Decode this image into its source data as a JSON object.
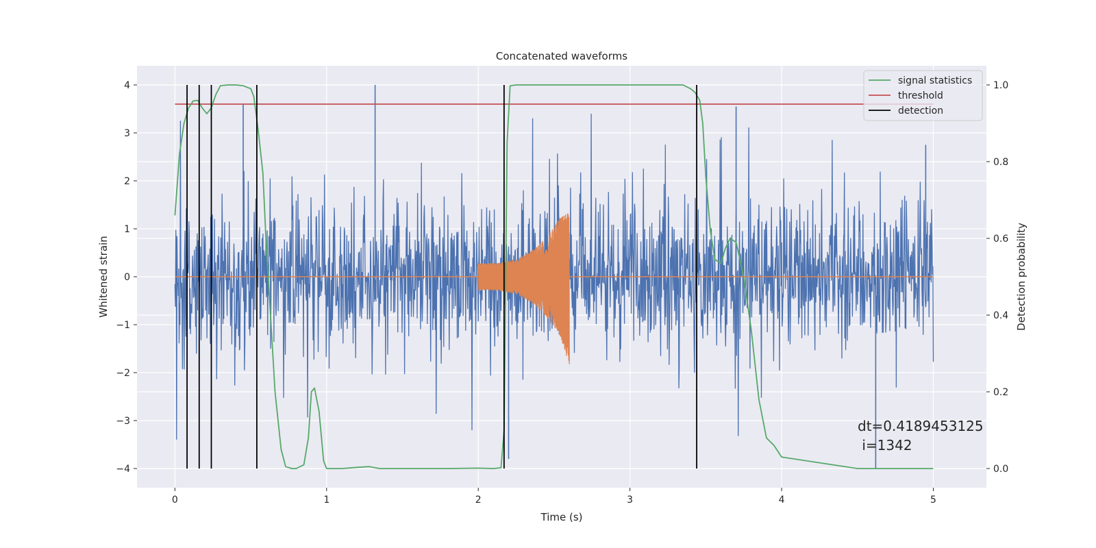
{
  "chart_data": {
    "type": "line",
    "title": "Concatenated waveforms",
    "xlabel": "Time (s)",
    "ylabel": "Whitened strain",
    "y2label": "Detection probability",
    "xlim": [
      -0.25,
      5.35
    ],
    "ylim": [
      -4.4,
      4.4
    ],
    "y2lim": [
      -0.05,
      1.05
    ],
    "xticks": [
      0,
      1,
      2,
      3,
      4,
      5
    ],
    "yticks": [
      -4,
      -3,
      -2,
      -1,
      0,
      1,
      2,
      3,
      4
    ],
    "y2ticks": [
      0.0,
      0.2,
      0.4,
      0.6,
      0.8,
      1.0
    ],
    "grid": true,
    "legend_position": "top-right",
    "legend": [
      "signal statistics",
      "threshold",
      "detection"
    ],
    "annotation": [
      "dt=0.4189453125",
      " i=1342"
    ],
    "colors": {
      "noise": "#4c72b0",
      "injected": "#dd8452",
      "statistics": "#55a868",
      "threshold": "#c44e52",
      "detection": "#000000",
      "plot_bg": "#eaeaf2",
      "grid": "#ffffff"
    },
    "series": [
      {
        "name": "signal statistics",
        "axis": "right",
        "x": [
          0.0,
          0.03,
          0.06,
          0.09,
          0.12,
          0.15,
          0.18,
          0.21,
          0.24,
          0.27,
          0.3,
          0.35,
          0.4,
          0.45,
          0.5,
          0.52,
          0.55,
          0.58,
          0.6,
          0.63,
          0.66,
          0.7,
          0.73,
          0.77,
          0.8,
          0.85,
          0.88,
          0.9,
          0.92,
          0.95,
          0.98,
          1.0,
          1.05,
          1.1,
          1.2,
          1.28,
          1.35,
          1.5,
          1.8,
          2.0,
          2.1,
          2.15,
          2.17,
          2.19,
          2.21,
          2.25,
          2.5,
          3.0,
          3.35,
          3.4,
          3.43,
          3.46,
          3.48,
          3.5,
          3.53,
          3.56,
          3.6,
          3.63,
          3.66,
          3.7,
          3.75,
          3.8,
          3.85,
          3.9,
          3.95,
          4.0,
          4.5,
          5.0
        ],
        "y": [
          0.66,
          0.82,
          0.9,
          0.94,
          0.958,
          0.96,
          0.94,
          0.925,
          0.94,
          0.975,
          0.998,
          1.0,
          1.0,
          0.998,
          0.99,
          0.97,
          0.88,
          0.77,
          0.6,
          0.4,
          0.2,
          0.05,
          0.005,
          0.0,
          0.0,
          0.01,
          0.08,
          0.2,
          0.21,
          0.15,
          0.02,
          0.0,
          0.0,
          0.0,
          0.003,
          0.005,
          0.0,
          0.0,
          0.0,
          0.001,
          0.0,
          0.002,
          0.1,
          0.85,
          0.998,
          1.0,
          1.0,
          1.0,
          1.0,
          0.99,
          0.98,
          0.96,
          0.9,
          0.76,
          0.62,
          0.545,
          0.535,
          0.575,
          0.6,
          0.59,
          0.5,
          0.36,
          0.18,
          0.08,
          0.06,
          0.03,
          0.0,
          0.0
        ]
      },
      {
        "name": "threshold",
        "axis": "right",
        "x": [
          0.0,
          5.0
        ],
        "y": [
          0.95,
          0.95
        ]
      }
    ],
    "detections": [
      0.08,
      0.16,
      0.24,
      0.54,
      2.17,
      3.44
    ],
    "noise_strain": {
      "x_range": [
        0.0,
        5.0
      ],
      "typical_range": [
        -1.7,
        1.7
      ],
      "extremes": [
        [
          1.32,
          4.0
        ],
        [
          2.2,
          -3.8
        ],
        [
          4.62,
          -4.0
        ],
        [
          0.45,
          3.6
        ],
        [
          3.7,
          3.55
        ],
        [
          4.95,
          2.75
        ]
      ]
    },
    "injected_waveform": {
      "x_range": [
        2.0,
        2.6
      ],
      "amplitude_start": 0.28,
      "amplitude_peak": 1.6,
      "amplitude_end": 0.0
    }
  }
}
